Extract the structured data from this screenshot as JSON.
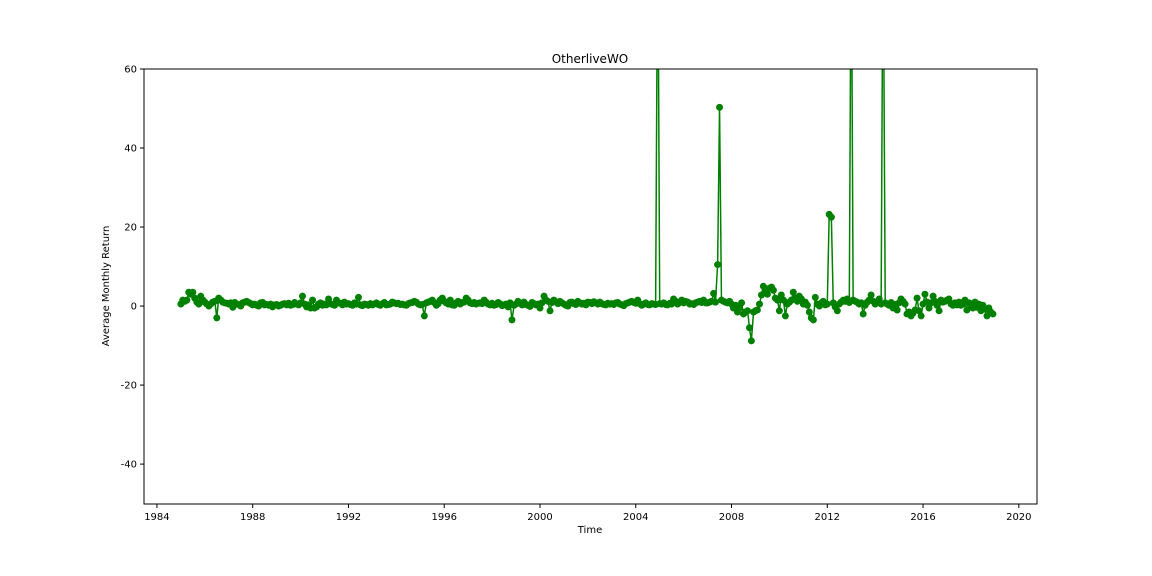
{
  "chart_data": {
    "type": "line",
    "title": "OtherliveWO",
    "x_label": "Time",
    "y_label": "Average Monthly Return",
    "color": "#008000",
    "xlim": [
      1983.46,
      2020.76
    ],
    "xticks": [
      1984,
      1988,
      1992,
      1996,
      2000,
      2004,
      2008,
      2012,
      2016,
      2020
    ],
    "ylim": [
      -50.1,
      60
    ],
    "yticks": [
      -40,
      -20,
      0,
      20,
      40,
      60
    ],
    "x": [
      1985.0,
      1985.08,
      1985.17,
      1985.25,
      1985.33,
      1985.42,
      1985.5,
      1985.58,
      1985.67,
      1985.75,
      1985.83,
      1985.92,
      1986.0,
      1986.08,
      1986.17,
      1986.25,
      1986.33,
      1986.42,
      1986.5,
      1986.58,
      1986.67,
      1986.75,
      1986.83,
      1986.92,
      1987.0,
      1987.08,
      1987.17,
      1987.25,
      1987.33,
      1987.42,
      1987.5,
      1987.58,
      1987.67,
      1987.75,
      1987.83,
      1987.92,
      1988.0,
      1988.08,
      1988.17,
      1988.25,
      1988.33,
      1988.42,
      1988.5,
      1988.58,
      1988.67,
      1988.75,
      1988.83,
      1988.92,
      1989.0,
      1989.08,
      1989.17,
      1989.25,
      1989.33,
      1989.42,
      1989.5,
      1989.58,
      1989.67,
      1989.75,
      1989.83,
      1989.92,
      1990.0,
      1990.08,
      1990.17,
      1990.25,
      1990.33,
      1990.42,
      1990.5,
      1990.58,
      1990.67,
      1990.75,
      1990.83,
      1990.92,
      1991.0,
      1991.08,
      1991.17,
      1991.25,
      1991.33,
      1991.42,
      1991.5,
      1991.58,
      1991.67,
      1991.75,
      1991.83,
      1991.92,
      1992.0,
      1992.08,
      1992.17,
      1992.25,
      1992.33,
      1992.42,
      1992.5,
      1992.58,
      1992.67,
      1992.75,
      1992.83,
      1992.92,
      1993.0,
      1993.08,
      1993.17,
      1993.25,
      1993.33,
      1993.42,
      1993.5,
      1993.58,
      1993.67,
      1993.75,
      1993.83,
      1993.92,
      1994.0,
      1994.08,
      1994.17,
      1994.25,
      1994.33,
      1994.42,
      1994.5,
      1994.58,
      1994.67,
      1994.75,
      1994.83,
      1994.92,
      1995.0,
      1995.08,
      1995.17,
      1995.25,
      1995.33,
      1995.42,
      1995.5,
      1995.58,
      1995.67,
      1995.75,
      1995.83,
      1995.92,
      1996.0,
      1996.08,
      1996.17,
      1996.25,
      1996.33,
      1996.42,
      1996.5,
      1996.58,
      1996.67,
      1996.75,
      1996.83,
      1996.92,
      1997.0,
      1997.08,
      1997.17,
      1997.25,
      1997.33,
      1997.42,
      1997.5,
      1997.58,
      1997.67,
      1997.75,
      1997.83,
      1997.92,
      1998.0,
      1998.08,
      1998.17,
      1998.25,
      1998.33,
      1998.42,
      1998.5,
      1998.58,
      1998.67,
      1998.75,
      1998.83,
      1998.92,
      1999.0,
      1999.08,
      1999.17,
      1999.25,
      1999.33,
      1999.42,
      1999.5,
      1999.58,
      1999.67,
      1999.75,
      1999.83,
      1999.92,
      2000.0,
      2000.08,
      2000.17,
      2000.25,
      2000.33,
      2000.42,
      2000.5,
      2000.58,
      2000.67,
      2000.75,
      2000.83,
      2000.92,
      2001.0,
      2001.08,
      2001.17,
      2001.25,
      2001.33,
      2001.42,
      2001.5,
      2001.58,
      2001.67,
      2001.75,
      2001.83,
      2001.92,
      2002.0,
      2002.08,
      2002.17,
      2002.25,
      2002.33,
      2002.42,
      2002.5,
      2002.58,
      2002.67,
      2002.75,
      2002.83,
      2002.92,
      2003.0,
      2003.08,
      2003.17,
      2003.25,
      2003.33,
      2003.42,
      2003.5,
      2003.58,
      2003.67,
      2003.75,
      2003.83,
      2003.92,
      2004.0,
      2004.08,
      2004.17,
      2004.25,
      2004.33,
      2004.42,
      2004.5,
      2004.58,
      2004.67,
      2004.75,
      2004.83,
      2004.92,
      2005.0,
      2005.08,
      2005.17,
      2005.25,
      2005.33,
      2005.42,
      2005.5,
      2005.58,
      2005.67,
      2005.75,
      2005.83,
      2005.92,
      2006.0,
      2006.08,
      2006.17,
      2006.25,
      2006.33,
      2006.42,
      2006.5,
      2006.58,
      2006.67,
      2006.75,
      2006.83,
      2006.92,
      2007.0,
      2007.08,
      2007.17,
      2007.25,
      2007.33,
      2007.42,
      2007.5,
      2007.58,
      2007.67,
      2007.75,
      2007.83,
      2007.92,
      2008.0,
      2008.08,
      2008.17,
      2008.25,
      2008.33,
      2008.42,
      2008.5,
      2008.58,
      2008.67,
      2008.75,
      2008.83,
      2008.92,
      2009.0,
      2009.08,
      2009.17,
      2009.25,
      2009.33,
      2009.42,
      2009.5,
      2009.58,
      2009.67,
      2009.75,
      2009.83,
      2009.92,
      2010.0,
      2010.08,
      2010.17,
      2010.25,
      2010.33,
      2010.42,
      2010.5,
      2010.58,
      2010.67,
      2010.75,
      2010.83,
      2010.92,
      2011.0,
      2011.08,
      2011.17,
      2011.25,
      2011.33,
      2011.42,
      2011.5,
      2011.58,
      2011.67,
      2011.75,
      2011.83,
      2011.92,
      2012.0,
      2012.08,
      2012.17,
      2012.25,
      2012.33,
      2012.42,
      2012.5,
      2012.58,
      2012.67,
      2012.75,
      2012.83,
      2012.92,
      2013.0,
      2013.08,
      2013.17,
      2013.25,
      2013.33,
      2013.42,
      2013.5,
      2013.58,
      2013.67,
      2013.75,
      2013.83,
      2013.92,
      2014.0,
      2014.08,
      2014.17,
      2014.25,
      2014.33,
      2014.42,
      2014.5,
      2014.58,
      2014.67,
      2014.75,
      2014.83,
      2014.92,
      2015.0,
      2015.08,
      2015.17,
      2015.25,
      2015.33,
      2015.42,
      2015.5,
      2015.58,
      2015.67,
      2015.75,
      2015.83,
      2015.92,
      2016.0,
      2016.08,
      2016.17,
      2016.25,
      2016.33,
      2016.42,
      2016.5,
      2016.58,
      2016.67,
      2016.75,
      2016.83,
      2016.92,
      2017.0,
      2017.08,
      2017.17,
      2017.25,
      2017.33,
      2017.42,
      2017.5,
      2017.58,
      2017.67,
      2017.75,
      2017.83,
      2017.92,
      2018.0,
      2018.08,
      2018.17,
      2018.25,
      2018.33,
      2018.42,
      2018.5,
      2018.58,
      2018.67,
      2018.75,
      2018.83,
      2018.92
    ],
    "values": [
      0.5,
      1.5,
      1.2,
      1.5,
      3.5,
      3.0,
      3.5,
      2.0,
      1.0,
      0.5,
      2.5,
      1.5,
      1.0,
      0.5,
      0.0,
      0.5,
      1.0,
      1.2,
      -3.0,
      2.0,
      1.5,
      1.0,
      0.8,
      0.7,
      0.5,
      0.8,
      -0.3,
      0.9,
      0.5,
      0.4,
      0.0,
      0.8,
      1.0,
      1.2,
      0.9,
      0.6,
      0.3,
      0.5,
      0.2,
      0.0,
      0.8,
      0.9,
      0.3,
      0.4,
      0.2,
      0.5,
      -0.2,
      0.3,
      0.4,
      0.0,
      0.2,
      0.5,
      0.6,
      0.3,
      0.7,
      0.2,
      0.4,
      0.9,
      0.5,
      0.3,
      0.8,
      2.5,
      0.5,
      -0.2,
      0.3,
      -0.5,
      1.5,
      -0.5,
      -0.2,
      0.5,
      0.8,
      0.2,
      0.5,
      0.3,
      1.8,
      0.6,
      0.4,
      0.2,
      1.5,
      0.8,
      0.7,
      0.3,
      1.0,
      0.5,
      0.6,
      0.4,
      0.2,
      0.8,
      0.5,
      2.2,
      0.3,
      0.1,
      0.5,
      0.4,
      0.2,
      0.6,
      0.3,
      0.5,
      0.8,
      0.4,
      0.2,
      0.6,
      0.9,
      0.3,
      0.4,
      0.5,
      1.0,
      0.8,
      0.6,
      0.7,
      0.4,
      0.5,
      0.3,
      0.2,
      0.6,
      0.8,
      0.9,
      1.2,
      1.0,
      0.5,
      0.3,
      0.4,
      -2.5,
      0.8,
      1.0,
      1.2,
      1.5,
      0.9,
      0.2,
      0.6,
      1.5,
      2.0,
      1.2,
      0.8,
      0.5,
      1.5,
      0.3,
      0.2,
      0.8,
      1.2,
      0.5,
      0.9,
      1.0,
      2.0,
      1.5,
      0.8,
      0.6,
      0.9,
      0.5,
      0.7,
      0.8,
      0.6,
      1.5,
      1.0,
      0.5,
      0.3,
      0.7,
      0.2,
      0.4,
      0.9,
      0.6,
      0.1,
      0.3,
      0.5,
      -0.2,
      0.8,
      -3.5,
      0.2,
      0.5,
      1.2,
      0.8,
      0.3,
      1.0,
      0.4,
      0.2,
      -0.1,
      0.9,
      0.6,
      0.3,
      0.5,
      -0.5,
      0.8,
      2.5,
      1.5,
      1.2,
      -1.2,
      0.9,
      1.5,
      1.0,
      0.6,
      1.2,
      0.8,
      0.5,
      0.2,
      0.0,
      0.9,
      1.0,
      0.6,
      0.4,
      1.2,
      0.8,
      0.5,
      0.7,
      0.3,
      1.0,
      0.9,
      0.6,
      1.1,
      0.8,
      0.5,
      1.0,
      0.6,
      0.4,
      0.3,
      0.7,
      0.5,
      0.6,
      0.4,
      0.8,
      0.9,
      0.5,
      0.3,
      0.1,
      0.6,
      0.8,
      1.0,
      1.2,
      0.9,
      0.7,
      1.5,
      0.6,
      0.2,
      0.5,
      0.8,
      0.4,
      0.3,
      0.6,
      0.5,
      0.4,
      100,
      0.6,
      0.5,
      0.8,
      0.4,
      0.3,
      0.7,
      0.5,
      1.8,
      1.2,
      0.5,
      0.9,
      1.5,
      0.8,
      1.2,
      1.0,
      0.5,
      0.6,
      0.4,
      0.8,
      1.0,
      1.2,
      0.9,
      1.5,
      0.8,
      0.8,
      1.0,
      1.2,
      3.2,
      1.0,
      10.5,
      50.3,
      1.5,
      1.2,
      1.0,
      0.8,
      1.2,
      0.5,
      -0.5,
      0.2,
      -1.5,
      -0.5,
      0.8,
      -2.0,
      -1.5,
      -1.2,
      -5.5,
      -8.8,
      -1.5,
      -1.2,
      -1.0,
      0.5,
      2.8,
      5.0,
      3.5,
      3.0,
      4.5,
      4.8,
      4.0,
      2.0,
      1.5,
      -1.2,
      2.8,
      1.5,
      -2.5,
      0.5,
      1.0,
      1.5,
      3.5,
      2.0,
      1.2,
      2.5,
      1.8,
      0.5,
      1.0,
      0.2,
      -1.5,
      -3.0,
      -3.5,
      2.2,
      0.5,
      0.0,
      0.8,
      1.2,
      0.3,
      0.5,
      23.2,
      22.5,
      0.8,
      -0.2,
      -1.2,
      0.5,
      1.0,
      1.5,
      1.2,
      1.8,
      0.9,
      100,
      1.5,
      1.2,
      1.0,
      0.5,
      0.8,
      -2.0,
      0.2,
      1.0,
      1.5,
      2.8,
      1.2,
      0.5,
      1.0,
      1.8,
      0.5,
      100,
      0.8,
      0.5,
      0.2,
      0.9,
      -0.5,
      0.4,
      -1.0,
      0.8,
      1.8,
      1.2,
      0.5,
      -2.0,
      -1.5,
      -2.5,
      -1.8,
      -1.0,
      2.0,
      -1.2,
      -2.5,
      0.5,
      3.0,
      1.0,
      -0.5,
      0.8,
      2.5,
      1.2,
      0.2,
      -1.2,
      1.5,
      1.0,
      1.2,
      1.5,
      1.8,
      0.5,
      0.2,
      0.8,
      0.3,
      1.0,
      0.2,
      0.5,
      1.5,
      -1.0,
      0.8,
      0.2,
      -0.5,
      1.0,
      -0.3,
      0.5,
      -1.2,
      0.2,
      -0.8,
      -2.5,
      -0.5,
      -1.5,
      -2.0
    ]
  }
}
